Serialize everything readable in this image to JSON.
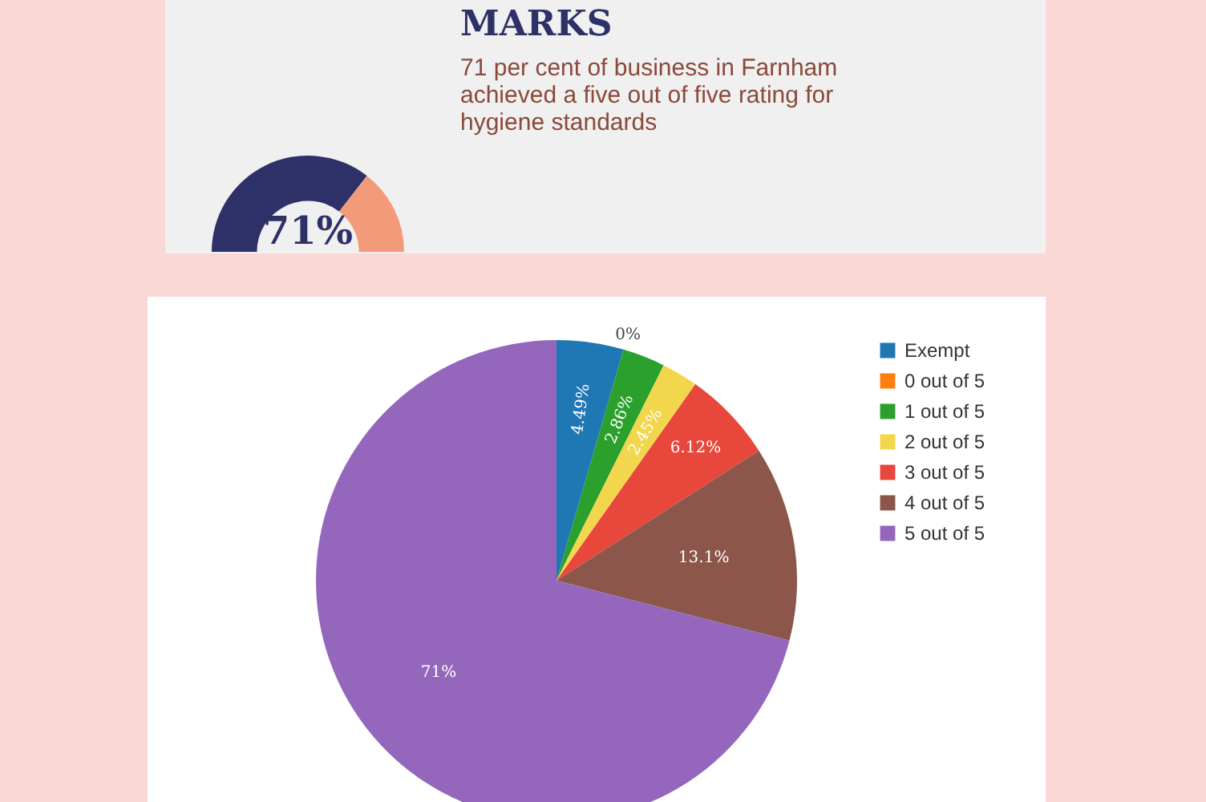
{
  "chart_data": [
    {
      "type": "donut",
      "title": "MARKS",
      "subtitle": "71 per cent of business in Farnham achieved a five out of five rating for hygiene standards",
      "categories": [
        null,
        null
      ],
      "values": [
        71,
        29
      ],
      "colors": [
        "#2e3068",
        "#f39a7b"
      ],
      "value_labels": [
        "71%",
        null
      ]
    },
    {
      "type": "pie",
      "categories": [
        "Exempt",
        "0 out of 5",
        "1 out of 5",
        "2 out of 5",
        "3 out of 5",
        "4 out of 5",
        "5 out of 5"
      ],
      "values": [
        4.49,
        0,
        2.86,
        2.45,
        6.12,
        13.1,
        71
      ],
      "colors": [
        "#1f77b4",
        "#ff7f0e",
        "#2ca02c",
        "#f2d64b",
        "#e8473c",
        "#8c564b",
        "#9467bd"
      ],
      "value_labels": [
        "4.49%",
        "0%",
        "2.86%",
        "2.45%",
        "6.12%",
        "13.1%",
        "71%"
      ],
      "legend": "top right"
    }
  ]
}
